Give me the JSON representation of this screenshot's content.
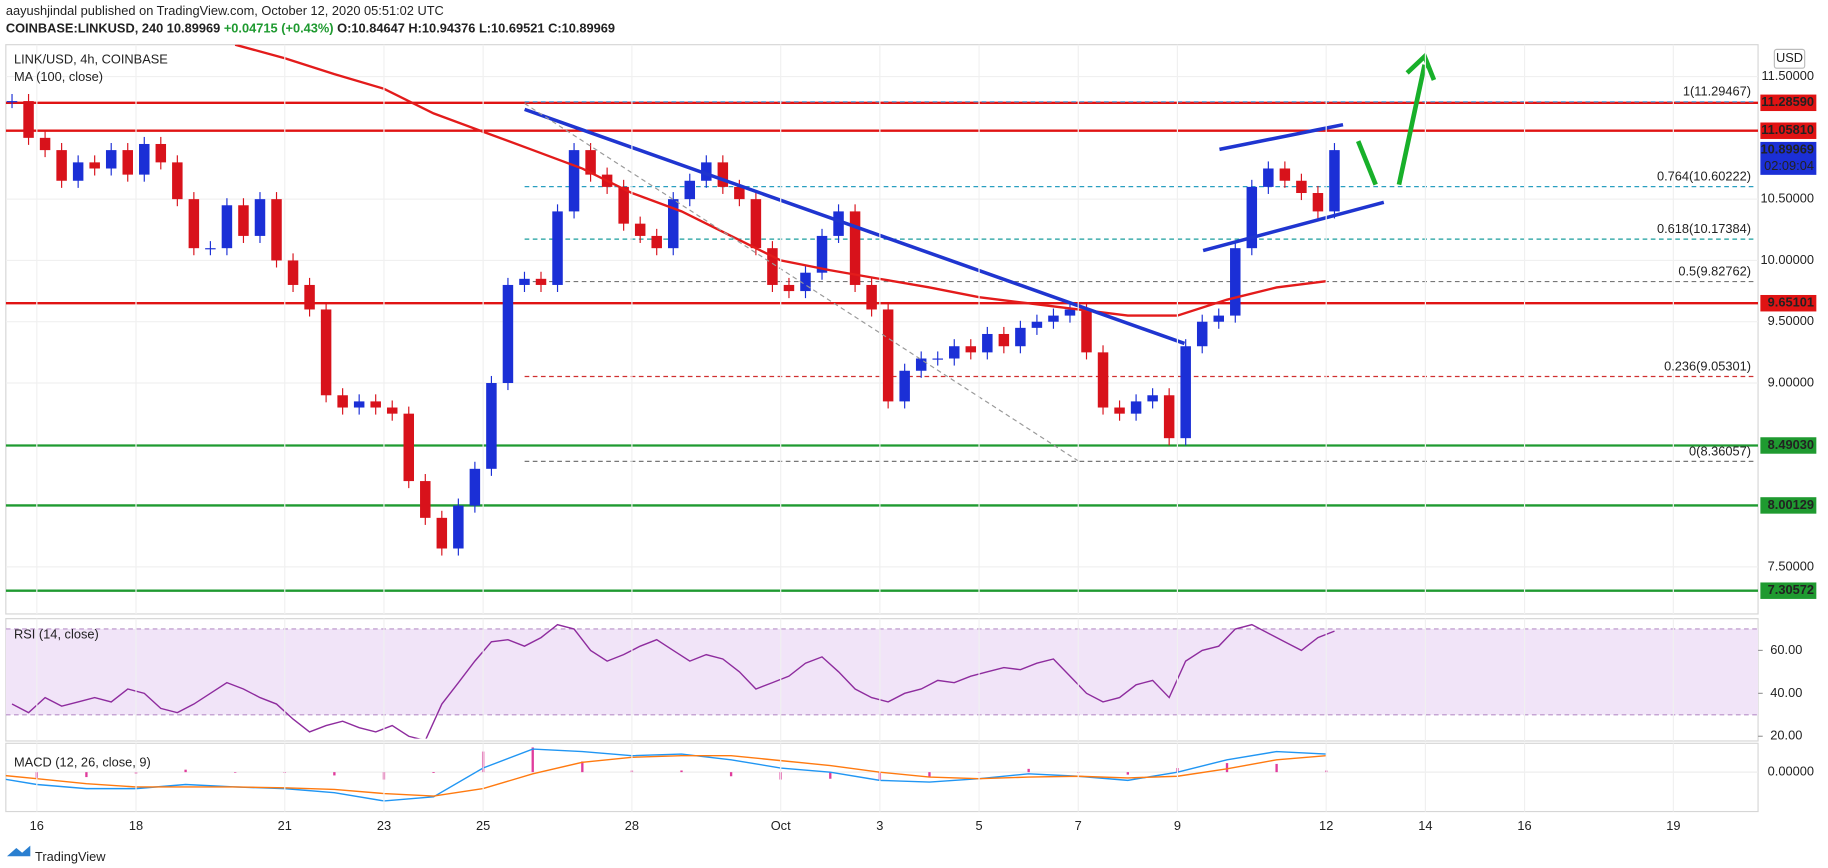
{
  "header": {
    "author": "aayushjindal published on TradingView.com, October 12, 2020 05:51:02 UTC",
    "symbol": "COINBASE:LINKUSD, 240",
    "price": "10.89969",
    "change": "+0.04715 (+0.43%)",
    "ohlc": "O:10.84647 H:10.94376 L:10.69521 C:10.89969",
    "brand": "TradingView"
  },
  "chart_data": {
    "type": "candlestick",
    "title": "LINK/USD, 4h, COINBASE",
    "currency": "USD",
    "up_color": "#1b2fd6",
    "down_color": "#d8121b",
    "xlim": [
      "2020-09-15T09:00",
      "2020-10-20T17:00"
    ],
    "xticks": [
      {
        "value": "2020-09-16",
        "label": "16"
      },
      {
        "value": "2020-09-18",
        "label": "18"
      },
      {
        "value": "2020-09-21",
        "label": "21"
      },
      {
        "value": "2020-09-23",
        "label": "23"
      },
      {
        "value": "2020-09-25",
        "label": "25"
      },
      {
        "value": "2020-09-28",
        "label": "28"
      },
      {
        "value": "2020-10-01",
        "label": "Oct"
      },
      {
        "value": "2020-10-03",
        "label": "3"
      },
      {
        "value": "2020-10-05",
        "label": "5"
      },
      {
        "value": "2020-10-07",
        "label": "7"
      },
      {
        "value": "2020-10-09",
        "label": "9"
      },
      {
        "value": "2020-10-12",
        "label": "12"
      },
      {
        "value": "2020-10-14",
        "label": "14"
      },
      {
        "value": "2020-10-16",
        "label": "16"
      },
      {
        "value": "2020-10-19",
        "label": "19"
      }
    ],
    "ylim": [
      7.116,
      11.76
    ],
    "yticks": [
      {
        "value": 11.5,
        "label": "11.50000"
      },
      {
        "value": 10.5,
        "label": "10.50000"
      },
      {
        "value": 10,
        "label": "10.00000"
      },
      {
        "value": 9.5,
        "label": "9.50000"
      },
      {
        "value": 9,
        "label": "9.00000"
      },
      {
        "value": 7.5,
        "label": "7.50000"
      }
    ],
    "candles": {
      "x": [
        "2020-09-15T12:00",
        "2020-09-15T20:00",
        "2020-09-16T04:00",
        "2020-09-16T12:00",
        "2020-09-16T20:00",
        "2020-09-17T04:00",
        "2020-09-17T12:00",
        "2020-09-17T20:00",
        "2020-09-18T04:00",
        "2020-09-18T12:00",
        "2020-09-18T20:00",
        "2020-09-19T04:00",
        "2020-09-19T12:00",
        "2020-09-19T20:00",
        "2020-09-20T04:00",
        "2020-09-20T12:00",
        "2020-09-20T20:00",
        "2020-09-21T04:00",
        "2020-09-21T12:00",
        "2020-09-21T20:00",
        "2020-09-22T04:00",
        "2020-09-22T12:00",
        "2020-09-22T20:00",
        "2020-09-23T04:00",
        "2020-09-23T12:00",
        "2020-09-23T20:00",
        "2020-09-24T04:00",
        "2020-09-24T12:00",
        "2020-09-24T20:00",
        "2020-09-25T04:00",
        "2020-09-25T12:00",
        "2020-09-25T20:00",
        "2020-09-26T04:00",
        "2020-09-26T12:00",
        "2020-09-26T20:00",
        "2020-09-27T04:00",
        "2020-09-27T12:00",
        "2020-09-27T20:00",
        "2020-09-28T04:00",
        "2020-09-28T12:00",
        "2020-09-28T20:00",
        "2020-09-29T04:00",
        "2020-09-29T12:00",
        "2020-09-29T20:00",
        "2020-09-30T04:00",
        "2020-09-30T12:00",
        "2020-09-30T20:00",
        "2020-10-01T04:00",
        "2020-10-01T12:00",
        "2020-10-01T20:00",
        "2020-10-02T04:00",
        "2020-10-02T12:00",
        "2020-10-02T20:00",
        "2020-10-03T04:00",
        "2020-10-03T12:00",
        "2020-10-03T20:00",
        "2020-10-04T04:00",
        "2020-10-04T12:00",
        "2020-10-04T20:00",
        "2020-10-05T04:00",
        "2020-10-05T12:00",
        "2020-10-05T20:00",
        "2020-10-06T04:00",
        "2020-10-06T12:00",
        "2020-10-06T20:00",
        "2020-10-07T04:00",
        "2020-10-07T12:00",
        "2020-10-07T20:00",
        "2020-10-08T04:00",
        "2020-10-08T12:00",
        "2020-10-08T20:00",
        "2020-10-09T04:00",
        "2020-10-09T12:00",
        "2020-10-09T20:00",
        "2020-10-10T04:00",
        "2020-10-10T12:00",
        "2020-10-10T20:00",
        "2020-10-11T04:00",
        "2020-10-11T12:00",
        "2020-10-11T20:00",
        "2020-10-12T04:00"
      ],
      "close": [
        11.3,
        11.0,
        10.9,
        10.65,
        10.8,
        10.75,
        10.9,
        10.7,
        10.95,
        10.8,
        10.5,
        10.1,
        10.1,
        10.45,
        10.2,
        10.5,
        10.0,
        9.8,
        9.6,
        8.9,
        8.8,
        8.85,
        8.8,
        8.75,
        8.2,
        7.9,
        7.65,
        8.0,
        8.3,
        9.0,
        9.8,
        9.85,
        9.8,
        10.4,
        10.9,
        10.7,
        10.6,
        10.3,
        10.2,
        10.1,
        10.5,
        10.65,
        10.8,
        10.6,
        10.5,
        10.1,
        9.8,
        9.75,
        9.9,
        10.2,
        10.4,
        9.8,
        9.6,
        8.85,
        9.1,
        9.2,
        9.2,
        9.3,
        9.25,
        9.4,
        9.3,
        9.45,
        9.5,
        9.55,
        9.6,
        9.25,
        8.8,
        8.75,
        8.85,
        8.9,
        8.55,
        9.3,
        9.5,
        9.55,
        10.1,
        10.6,
        10.75,
        10.65,
        10.55,
        10.4,
        10.9
      ]
    },
    "ma": {
      "name": "MA (100, close)",
      "color": "#e31b1b",
      "x": [
        "2020-09-20",
        "2020-09-21",
        "2020-09-22",
        "2020-09-23",
        "2020-09-24",
        "2020-09-25",
        "2020-09-26",
        "2020-09-27",
        "2020-09-28",
        "2020-09-29",
        "2020-09-30",
        "2020-10-01",
        "2020-10-02",
        "2020-10-03",
        "2020-10-04",
        "2020-10-05",
        "2020-10-06",
        "2020-10-07",
        "2020-10-08",
        "2020-10-09",
        "2020-10-10",
        "2020-10-11",
        "2020-10-12"
      ],
      "values": [
        11.76,
        11.65,
        11.52,
        11.4,
        11.2,
        11.05,
        10.9,
        10.75,
        10.55,
        10.4,
        10.2,
        10.0,
        9.92,
        9.85,
        9.78,
        9.7,
        9.65,
        9.6,
        9.55,
        9.55,
        9.68,
        9.78,
        9.83
      ]
    },
    "levels": [
      {
        "value": 11.2859,
        "label": "11.28590",
        "color": "#e01313"
      },
      {
        "value": 11.0581,
        "label": "11.05810",
        "color": "#e01313"
      },
      {
        "value": 9.65101,
        "label": "9.65101",
        "color": "#e01313"
      },
      {
        "value": 8.4903,
        "label": "8.49030",
        "color": "#1f9a30"
      },
      {
        "value": 8.00129,
        "label": "8.00129",
        "color": "#1f9a30"
      },
      {
        "value": 7.30572,
        "label": "7.30572",
        "color": "#1f9a30"
      }
    ],
    "fib": [
      {
        "value": 11.29467,
        "label": "1(11.29467)",
        "color": "#5aa0d8"
      },
      {
        "value": 10.60222,
        "label": "0.764(10.60222)",
        "color": "#2a9fc0"
      },
      {
        "value": 10.17384,
        "label": "0.618(10.17384)",
        "color": "#1a9e9e"
      },
      {
        "value": 9.82762,
        "label": "0.5(9.82762)",
        "color": "#777777"
      },
      {
        "value": 9.05301,
        "label": "0.236(9.05301)",
        "color": "#d03030"
      },
      {
        "value": 8.36057,
        "label": "0(8.36057)",
        "color": "#777777"
      }
    ],
    "last": {
      "value": 10.89969,
      "label": "10.89969",
      "countdown": "02:09:04",
      "color": "#1b2fd6"
    },
    "rsi": {
      "title": "RSI (14, close)",
      "color": "#8e2c9e",
      "band": [
        30,
        70
      ],
      "ylim": [
        18.9,
        73.7
      ],
      "yticks": [
        {
          "value": 60,
          "label": "60.00"
        },
        {
          "value": 40,
          "label": "40.00"
        },
        {
          "value": 20,
          "label": "20.00"
        }
      ],
      "values": [
        35,
        31,
        38,
        34,
        36,
        38,
        36,
        42,
        40,
        33,
        31,
        35,
        40,
        45,
        42,
        38,
        35,
        28,
        22,
        25,
        27,
        24,
        22,
        25,
        20,
        18,
        35,
        45,
        55,
        64,
        65,
        62,
        66,
        72,
        70,
        60,
        55,
        58,
        62,
        65,
        60,
        55,
        58,
        56,
        50,
        42,
        45,
        48,
        54,
        57,
        50,
        42,
        38,
        36,
        40,
        42,
        46,
        45,
        48,
        50,
        52,
        51,
        54,
        56,
        48,
        40,
        36,
        38,
        44,
        46,
        38,
        55,
        60,
        62,
        70,
        72,
        68,
        64,
        60,
        66,
        69
      ]
    },
    "macd": {
      "title": "MACD (12, 26, close, 9)",
      "macd_color": "#2196f3",
      "signal_color": "#ff7a10",
      "hist_color": "#e03c9c",
      "ylim": [
        -0.45,
        0.35
      ],
      "yticks": [
        {
          "value": 0,
          "label": "0.00000"
        }
      ],
      "x": [
        "2020-09-15",
        "2020-09-16",
        "2020-09-17",
        "2020-09-18",
        "2020-09-19",
        "2020-09-20",
        "2020-09-21",
        "2020-09-22",
        "2020-09-23",
        "2020-09-24",
        "2020-09-25",
        "2020-09-26",
        "2020-09-27",
        "2020-09-28",
        "2020-09-29",
        "2020-09-30",
        "2020-10-01",
        "2020-10-02",
        "2020-10-03",
        "2020-10-04",
        "2020-10-05",
        "2020-10-06",
        "2020-10-07",
        "2020-10-08",
        "2020-10-09",
        "2020-10-10",
        "2020-10-11",
        "2020-10-12"
      ],
      "macd": [
        -0.05,
        -0.15,
        -0.2,
        -0.2,
        -0.15,
        -0.18,
        -0.2,
        -0.25,
        -0.35,
        -0.3,
        0.05,
        0.28,
        0.25,
        0.2,
        0.22,
        0.15,
        0.05,
        0.0,
        -0.1,
        -0.12,
        -0.08,
        -0.02,
        -0.05,
        -0.1,
        0.0,
        0.15,
        0.25,
        0.22
      ],
      "signal": [
        -0.02,
        -0.08,
        -0.14,
        -0.18,
        -0.18,
        -0.18,
        -0.19,
        -0.21,
        -0.26,
        -0.29,
        -0.2,
        -0.02,
        0.12,
        0.18,
        0.2,
        0.2,
        0.14,
        0.08,
        0.0,
        -0.06,
        -0.08,
        -0.06,
        -0.05,
        -0.07,
        -0.05,
        0.04,
        0.15,
        0.2
      ],
      "histogram": [
        -0.03,
        -0.07,
        -0.06,
        -0.02,
        0.03,
        0.0,
        -0.01,
        -0.04,
        -0.09,
        -0.01,
        0.25,
        0.3,
        0.13,
        0.02,
        0.02,
        -0.05,
        -0.09,
        -0.08,
        -0.1,
        -0.06,
        0.0,
        0.04,
        0.0,
        -0.03,
        0.05,
        0.11,
        0.1,
        0.02
      ]
    }
  }
}
